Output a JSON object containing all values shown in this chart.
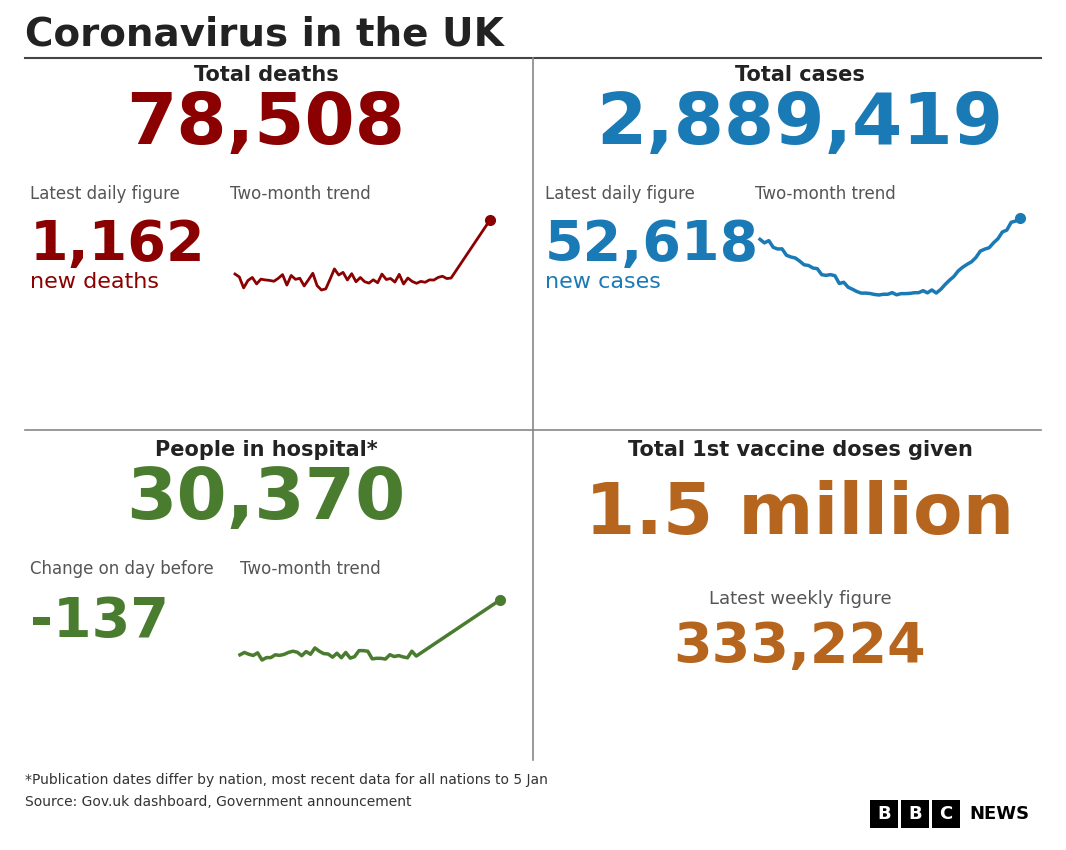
{
  "title": "Coronavirus in the UK",
  "bg_color": "#ffffff",
  "title_color": "#222222",
  "top_left": {
    "header": "Total deaths",
    "total": "78,508",
    "total_color": "#8b0000",
    "label1": "Latest daily figure",
    "label2": "Two-month trend",
    "daily": "1,162",
    "daily_sub": "new deaths",
    "daily_color": "#8b0000",
    "trend_color": "#8b0000"
  },
  "top_right": {
    "header": "Total cases",
    "total": "2,889,419",
    "total_color": "#1a7ab5",
    "label1": "Latest daily figure",
    "label2": "Two-month trend",
    "daily": "52,618",
    "daily_sub": "new cases",
    "daily_color": "#1a7ab5",
    "trend_color": "#1a7ab5"
  },
  "bottom_left": {
    "header": "People in hospital*",
    "total": "30,370",
    "total_color": "#4a7c2f",
    "label1": "Change on day before",
    "label2": "Two-month trend",
    "daily": "-137",
    "daily_color": "#4a7c2f",
    "trend_color": "#4a7c2f"
  },
  "bottom_right": {
    "header": "Total 1st vaccine doses given",
    "total": "1.5 million",
    "total_color": "#b5651d",
    "label1": "Latest weekly figure",
    "weekly": "333,224",
    "weekly_color": "#b5651d"
  },
  "footnote1": "*Publication dates differ by nation, most recent data for all nations to 5 Jan",
  "footnote2": "Source: Gov.uk dashboard, Government announcement",
  "footnote_color": "#333333"
}
